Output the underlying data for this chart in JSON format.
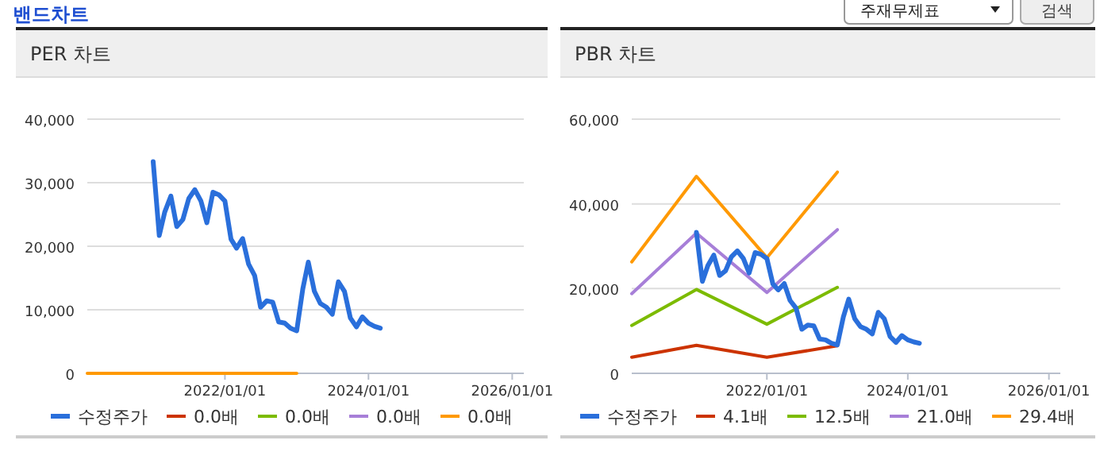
{
  "chart_data": [
    {
      "type": "line",
      "title": "PER 차트",
      "annotations": [
        "밴드차트"
      ],
      "grid": "y",
      "legend": "bottom",
      "xlim": [
        "2020-02",
        "2026-03"
      ],
      "xticks": [
        {
          "value": "2022-01-01",
          "label": "2022/01/01"
        },
        {
          "value": "2024-01-01",
          "label": "2024/01/01"
        },
        {
          "value": "2026-01-01",
          "label": "2026/01/01"
        }
      ],
      "ylim": [
        0,
        40000
      ],
      "yticks": [
        {
          "value": 0,
          "label": "0"
        },
        {
          "value": 10000,
          "label": "10,000"
        },
        {
          "value": 20000,
          "label": "20,000"
        },
        {
          "value": 30000,
          "label": "30,000"
        },
        {
          "value": 40000,
          "label": "40,000"
        }
      ],
      "series": [
        {
          "name": "수정주가",
          "color": "#2a6fdb",
          "x": [
            "2021-01",
            "2021-02",
            "2021-03",
            "2021-04",
            "2021-05",
            "2021-06",
            "2021-07",
            "2021-08",
            "2021-09",
            "2021-10",
            "2021-11",
            "2021-12",
            "2022-01",
            "2022-02",
            "2022-03",
            "2022-04",
            "2022-05",
            "2022-06",
            "2022-07",
            "2022-08",
            "2022-09",
            "2022-10",
            "2022-11",
            "2022-12",
            "2023-01",
            "2023-02",
            "2023-03",
            "2023-04",
            "2023-05",
            "2023-06",
            "2023-07",
            "2023-08",
            "2023-09",
            "2023-10",
            "2023-11",
            "2023-12",
            "2024-01",
            "2024-02",
            "2024-03"
          ],
          "values": [
            33300,
            21700,
            25400,
            27900,
            23100,
            24200,
            27500,
            28900,
            27100,
            23700,
            28500,
            28100,
            27100,
            21100,
            19700,
            21200,
            17200,
            15400,
            10400,
            11400,
            11200,
            8100,
            7900,
            7100,
            6700,
            13300,
            17500,
            12900,
            11000,
            10400,
            9300,
            14400,
            12900,
            8700,
            7300,
            8900,
            7900,
            7400,
            7100
          ]
        },
        {
          "name": "0.0배",
          "color": "#cc3300",
          "values": [
            null,
            null,
            null,
            null
          ]
        },
        {
          "name": "0.0배",
          "color": "#7cbb00",
          "values": [
            null,
            null,
            null,
            null
          ]
        },
        {
          "name": "0.0배",
          "color": "#a77fd8",
          "values": [
            null,
            null,
            null,
            null
          ]
        },
        {
          "name": "0.0배",
          "color": "#ff9900",
          "x": [
            "2020-02",
            "2021-01",
            "2022-01",
            "2023-01"
          ],
          "values": [
            0,
            0,
            0,
            0
          ]
        }
      ]
    },
    {
      "type": "line",
      "title": "PBR 차트",
      "annotations": [
        "주재무제표",
        "검색"
      ],
      "grid": "y",
      "legend": "bottom",
      "xlim": [
        "2020-02",
        "2026-03"
      ],
      "xticks": [
        {
          "value": "2022-01-01",
          "label": "2022/01/01"
        },
        {
          "value": "2024-01-01",
          "label": "2024/01/01"
        },
        {
          "value": "2026-01-01",
          "label": "2026/01/01"
        }
      ],
      "ylim": [
        0,
        60000
      ],
      "yticks": [
        {
          "value": 0,
          "label": "0"
        },
        {
          "value": 20000,
          "label": "20,000"
        },
        {
          "value": 40000,
          "label": "40,000"
        },
        {
          "value": 60000,
          "label": "60,000"
        }
      ],
      "series": [
        {
          "name": "수정주가",
          "color": "#2a6fdb",
          "x": [
            "2021-01",
            "2021-02",
            "2021-03",
            "2021-04",
            "2021-05",
            "2021-06",
            "2021-07",
            "2021-08",
            "2021-09",
            "2021-10",
            "2021-11",
            "2021-12",
            "2022-01",
            "2022-02",
            "2022-03",
            "2022-04",
            "2022-05",
            "2022-06",
            "2022-07",
            "2022-08",
            "2022-09",
            "2022-10",
            "2022-11",
            "2022-12",
            "2023-01",
            "2023-02",
            "2023-03",
            "2023-04",
            "2023-05",
            "2023-06",
            "2023-07",
            "2023-08",
            "2023-09",
            "2023-10",
            "2023-11",
            "2023-12",
            "2024-01",
            "2024-02",
            "2024-03"
          ],
          "values": [
            33300,
            21700,
            25400,
            27900,
            23100,
            24200,
            27500,
            28900,
            27100,
            23700,
            28500,
            28100,
            27100,
            21100,
            19700,
            21200,
            17200,
            15400,
            10400,
            11400,
            11200,
            8100,
            7900,
            7100,
            6700,
            13300,
            17500,
            12900,
            11000,
            10400,
            9300,
            14400,
            12900,
            8700,
            7300,
            8900,
            7900,
            7400,
            7100
          ]
        },
        {
          "name": "4.1배",
          "color": "#cc3300",
          "x": [
            "2020-02",
            "2021-01",
            "2022-01",
            "2023-01"
          ],
          "values": [
            3800,
            6600,
            3800,
            6500
          ]
        },
        {
          "name": "12.5배",
          "color": "#7cbb00",
          "x": [
            "2020-02",
            "2021-01",
            "2022-01",
            "2023-01"
          ],
          "values": [
            11300,
            19800,
            11600,
            20300
          ]
        },
        {
          "name": "21.0배",
          "color": "#a77fd8",
          "x": [
            "2020-02",
            "2021-01",
            "2022-01",
            "2023-01"
          ],
          "values": [
            18800,
            33100,
            19100,
            33900
          ]
        },
        {
          "name": "29.4배",
          "color": "#ff9900",
          "x": [
            "2020-02",
            "2021-01",
            "2022-01",
            "2023-01"
          ],
          "values": [
            26300,
            46500,
            27300,
            47500
          ]
        }
      ]
    }
  ]
}
